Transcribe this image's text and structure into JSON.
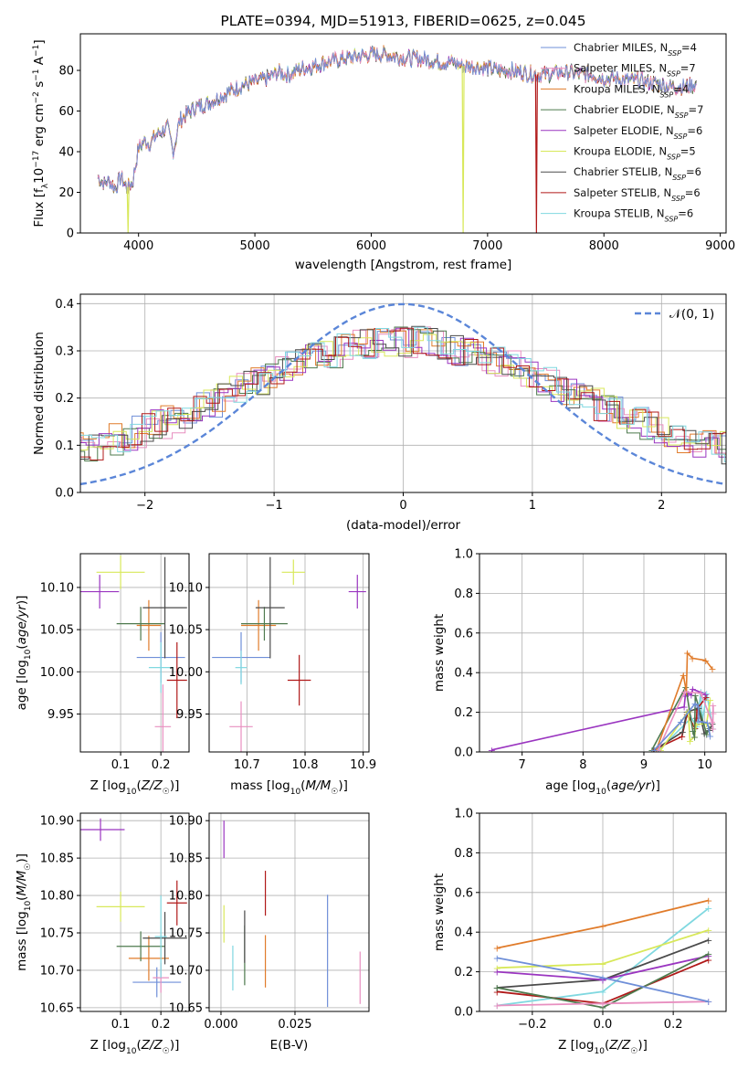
{
  "colors": [
    "#6f8fd8",
    "#e88fc0",
    "#e07b2a",
    "#4e7a4e",
    "#9a35c0",
    "#d8e85a",
    "#4a4a4a",
    "#b01818",
    "#80d8e0"
  ],
  "chart_data": [
    {
      "type": "line",
      "title": "PLATE=0394, MJD=51913, FIBERID=0625, z=0.045",
      "xlabel": "wavelength [Angstrom, rest frame]",
      "ylabel": "Flux [f$_\\lambda$10$^{-17}$ erg cm$^{-2}$ s$^{-1}$ A$^{-1}$]",
      "ylabel_parts": {
        "main": "Flux [f",
        "sub1": "λ",
        "mid": "10",
        "e1": "−17",
        "t2": " erg cm",
        "e2": "−2",
        "t3": " s",
        "e3": "−1",
        "t4": " A",
        "e4": "−1",
        "end": "]"
      },
      "xlim": [
        3500,
        9050
      ],
      "ylim": [
        0,
        98
      ],
      "xticks": [
        4000,
        5000,
        6000,
        7000,
        8000,
        9000
      ],
      "yticks": [
        0,
        20,
        40,
        60,
        80
      ],
      "grid": false,
      "legend_position": "right",
      "legend": [
        {
          "name": "Chabrier MILES",
          "n": "4"
        },
        {
          "name": "Salpeter MILES",
          "n": "7"
        },
        {
          "name": "Kroupa MILES",
          "n": "4"
        },
        {
          "name": "Chabrier ELODIE",
          "n": "7"
        },
        {
          "name": "Salpeter ELODIE",
          "n": "6"
        },
        {
          "name": "Kroupa ELODIE",
          "n": "5"
        },
        {
          "name": "Chabrier STELIB",
          "n": "6"
        },
        {
          "name": "Salpeter STELIB",
          "n": "6"
        },
        {
          "name": "Kroupa STELIB",
          "n": "6"
        }
      ],
      "legend_sub": "SSP",
      "spectrum_x": [
        3650,
        3700,
        3750,
        3800,
        3850,
        3900,
        3950,
        4000,
        4050,
        4100,
        4150,
        4200,
        4250,
        4300,
        4350,
        4400,
        4450,
        4500,
        4600,
        4700,
        4800,
        4900,
        5000,
        5100,
        5200,
        5300,
        5400,
        5500,
        5600,
        5700,
        5800,
        5900,
        6000,
        6100,
        6200,
        6300,
        6400,
        6500,
        6600,
        6700,
        6800,
        6900,
        7000,
        7100,
        7200,
        7300,
        7400,
        7500,
        7600,
        7700,
        7800,
        7900,
        8000,
        8100,
        8200,
        8300,
        8400,
        8500,
        8600,
        8700,
        8800
      ],
      "spectrum_y": [
        28,
        24,
        26,
        22,
        28,
        22,
        25,
        42,
        45,
        44,
        48,
        50,
        52,
        40,
        55,
        58,
        60,
        62,
        64,
        67,
        70,
        73,
        74,
        76,
        79,
        78,
        81,
        82,
        84,
        85,
        86,
        87,
        88,
        88,
        87,
        86,
        86,
        85,
        84,
        84,
        82,
        82,
        81,
        80,
        80,
        79,
        78,
        78,
        79,
        79,
        78,
        78,
        76,
        76,
        75,
        75,
        74,
        73,
        72,
        72,
        73
      ],
      "vertical_spikes": [
        {
          "x": 3910,
          "c": 5
        },
        {
          "x": 6790,
          "c": 5
        },
        {
          "x": 7420,
          "c": 7
        }
      ]
    },
    {
      "type": "histogram",
      "xlabel": "(data-model)/error",
      "ylabel": "Normed distribution",
      "xlim": [
        -2.5,
        2.5
      ],
      "ylim": [
        0,
        0.42
      ],
      "xticks": [
        -2,
        -1,
        0,
        1,
        2
      ],
      "yticks": [
        0.0,
        0.1,
        0.2,
        0.3,
        0.4
      ],
      "grid": true,
      "legend_position": "top-right",
      "legend": [
        {
          "name": "𝒩(0, 1)",
          "style": "dashed"
        }
      ],
      "normal_curve": {
        "mu": 0,
        "sigma": 1
      }
    },
    {
      "type": "scatter",
      "xlabel": "Z [log10(Z/Z☉)]",
      "ylabel": "age  [log10(age/yr)]",
      "xlim": [
        0.0,
        0.27
      ],
      "ylim": [
        9.905,
        10.14
      ],
      "xticks": [
        0.1,
        0.2
      ],
      "yticks": [
        9.95,
        10.0,
        10.05,
        10.1
      ],
      "grid": true,
      "points": [
        {
          "c": 0,
          "x": 0.2,
          "y": 10.017,
          "xe": 0.06,
          "ye": 0.03
        },
        {
          "c": 1,
          "x": 0.205,
          "y": 9.935,
          "xe": 0.02,
          "ye": 0.05
        },
        {
          "c": 2,
          "x": 0.17,
          "y": 10.055,
          "xe": 0.03,
          "ye": 0.03
        },
        {
          "c": 3,
          "x": 0.15,
          "y": 10.057,
          "xe": 0.06,
          "ye": 0.02
        },
        {
          "c": 4,
          "x": 0.048,
          "y": 10.095,
          "xe": 0.048,
          "ye": 0.02
        },
        {
          "c": 5,
          "x": 0.1,
          "y": 10.118,
          "xe": 0.06,
          "ye": 0.02
        },
        {
          "c": 6,
          "x": 0.21,
          "y": 10.076,
          "xe": 0.055,
          "ye": 0.06
        },
        {
          "c": 7,
          "x": 0.24,
          "y": 9.99,
          "xe": 0.025,
          "ye": 0.045
        },
        {
          "c": 8,
          "x": 0.2,
          "y": 10.005,
          "xe": 0.03,
          "ye": 0.03
        }
      ]
    },
    {
      "type": "scatter",
      "xlabel": "mass [log10(M/M☉)]",
      "ylabel": "",
      "xlim": [
        10.635,
        10.91
      ],
      "ylim": [
        9.905,
        10.14
      ],
      "xticks": [
        10.7,
        10.8,
        10.9
      ],
      "yticks": [
        9.95,
        10.0,
        10.05,
        10.1
      ],
      "grid": true,
      "points": [
        {
          "c": 0,
          "x": 10.69,
          "y": 10.017,
          "xe": 0.05,
          "ye": 0.03
        },
        {
          "c": 1,
          "x": 10.69,
          "y": 9.935,
          "xe": 0.02,
          "ye": 0.03
        },
        {
          "c": 2,
          "x": 10.72,
          "y": 10.055,
          "xe": 0.03,
          "ye": 0.03
        },
        {
          "c": 3,
          "x": 10.73,
          "y": 10.057,
          "xe": 0.04,
          "ye": 0.02
        },
        {
          "c": 4,
          "x": 10.89,
          "y": 10.095,
          "xe": 0.015,
          "ye": 0.02
        },
        {
          "c": 5,
          "x": 10.78,
          "y": 10.118,
          "xe": 0.02,
          "ye": 0.015
        },
        {
          "c": 6,
          "x": 10.74,
          "y": 10.076,
          "xe": 0.025,
          "ye": 0.06
        },
        {
          "c": 7,
          "x": 10.79,
          "y": 9.99,
          "xe": 0.02,
          "ye": 0.03
        },
        {
          "c": 8,
          "x": 10.69,
          "y": 10.005,
          "xe": 0.01,
          "ye": 0.02
        }
      ]
    },
    {
      "type": "line",
      "xlabel": "age  [log10(age/yr)]",
      "ylabel": "mass weight",
      "xlim": [
        6.3,
        10.35
      ],
      "ylim": [
        0,
        1.0
      ],
      "xticks": [
        7,
        8,
        9,
        10
      ],
      "yticks": [
        0.0,
        0.2,
        0.4,
        0.6,
        0.8,
        1.0
      ],
      "grid": true
    },
    {
      "type": "scatter",
      "xlabel": "Z [log10(Z/Z☉)]",
      "ylabel": "mass [log10(M/M☉)]",
      "xlim": [
        0.0,
        0.27
      ],
      "ylim": [
        10.645,
        10.91
      ],
      "xticks": [
        0.1,
        0.2
      ],
      "yticks": [
        10.65,
        10.7,
        10.75,
        10.8,
        10.85,
        10.9
      ],
      "grid": true,
      "points": [
        {
          "c": 0,
          "x": 0.19,
          "y": 10.684,
          "xe": 0.06,
          "ye": 0.02
        },
        {
          "c": 1,
          "x": 0.2,
          "y": 10.69,
          "xe": 0.02,
          "ye": 0.02
        },
        {
          "c": 2,
          "x": 0.17,
          "y": 10.716,
          "xe": 0.05,
          "ye": 0.03
        },
        {
          "c": 3,
          "x": 0.15,
          "y": 10.732,
          "xe": 0.06,
          "ye": 0.02
        },
        {
          "c": 4,
          "x": 0.05,
          "y": 10.888,
          "xe": 0.06,
          "ye": 0.015
        },
        {
          "c": 5,
          "x": 0.1,
          "y": 10.785,
          "xe": 0.06,
          "ye": 0.02
        },
        {
          "c": 6,
          "x": 0.21,
          "y": 10.743,
          "xe": 0.055,
          "ye": 0.035
        },
        {
          "c": 7,
          "x": 0.24,
          "y": 10.79,
          "xe": 0.025,
          "ye": 0.03
        },
        {
          "c": 8,
          "x": 0.2,
          "y": 10.745,
          "xe": 0.015,
          "ye": 0.055
        }
      ]
    },
    {
      "type": "scatter",
      "xlabel": "E(B-V)",
      "ylabel": "",
      "xlim": [
        -0.004,
        0.05
      ],
      "ylim": [
        10.645,
        10.91
      ],
      "xticks": [
        0.0,
        0.025
      ],
      "xtick_labels": [
        "0.000",
        "0.025"
      ],
      "yticks": [
        10.65,
        10.7,
        10.75,
        10.8,
        10.85,
        10.9
      ],
      "grid": true,
      "points": [
        {
          "c": 0,
          "x": 0.036,
          "y": 10.726,
          "xe": 0,
          "ye": 0.075
        },
        {
          "c": 1,
          "x": 0.047,
          "y": 10.69,
          "xe": 0,
          "ye": 0.035
        },
        {
          "c": 2,
          "x": 0.015,
          "y": 10.712,
          "xe": 0,
          "ye": 0.035
        },
        {
          "c": 3,
          "x": 0.008,
          "y": 10.72,
          "xe": 0,
          "ye": 0.04
        },
        {
          "c": 4,
          "x": 0.001,
          "y": 10.875,
          "xe": 0,
          "ye": 0.025
        },
        {
          "c": 5,
          "x": 0.001,
          "y": 10.762,
          "xe": 0,
          "ye": 0.025
        },
        {
          "c": 6,
          "x": 0.008,
          "y": 10.745,
          "xe": 0,
          "ye": 0.035
        },
        {
          "c": 7,
          "x": 0.015,
          "y": 10.803,
          "xe": 0,
          "ye": 0.03
        },
        {
          "c": 8,
          "x": 0.004,
          "y": 10.703,
          "xe": 0,
          "ye": 0.03
        }
      ]
    },
    {
      "type": "line",
      "xlabel": "Z [log10(Z/Z☉)]",
      "ylabel": "mass weight",
      "xlim": [
        -0.35,
        0.35
      ],
      "ylim": [
        0,
        1.0
      ],
      "xticks": [
        -0.2,
        0.0,
        0.2
      ],
      "xtick_labels": [
        "−0.2",
        "0.0",
        "0.2"
      ],
      "yticks": [
        0.0,
        0.2,
        0.4,
        0.6,
        0.8,
        1.0
      ],
      "grid": true
    }
  ],
  "axis_math": {
    "log10": "log",
    "sub10": "10",
    "zsym": "Z/Z",
    "msym": "M/M",
    "agesym": "age/yr"
  }
}
